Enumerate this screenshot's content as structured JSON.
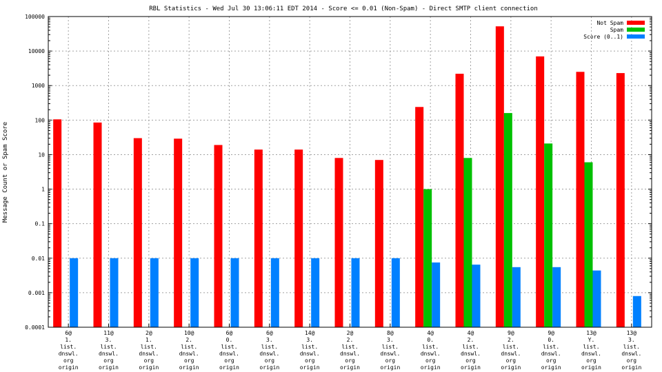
{
  "chart_data": {
    "type": "bar",
    "title": "RBL Statistics - Wed Jul 30 13:06:11 EDT 2014 - Score <= 0.01 (Non-Spam) - Direct SMTP client connection",
    "xlabel": "",
    "ylabel": "Message Count or Spam Score",
    "yscale": "log",
    "ylim": [
      0.0001,
      100000
    ],
    "yticks": [
      "0.0001",
      "0.001",
      "0.01",
      "0.1",
      "1",
      "10",
      "100",
      "1000",
      "10000",
      "100000"
    ],
    "grid": true,
    "legend_position": "top-right",
    "categories": [
      [
        "6@",
        "1.",
        "list.",
        "dnswl.",
        "org",
        "origin"
      ],
      [
        "11@",
        "3.",
        "list.",
        "dnswl.",
        "org",
        "origin"
      ],
      [
        "2@",
        "1.",
        "list.",
        "dnswl.",
        "org",
        "origin"
      ],
      [
        "10@",
        "2.",
        "list.",
        "dnswl.",
        "org",
        "origin"
      ],
      [
        "6@",
        "0.",
        "list.",
        "dnswl.",
        "org",
        "origin"
      ],
      [
        "6@",
        "3.",
        "list.",
        "dnswl.",
        "org",
        "origin"
      ],
      [
        "14@",
        "3.",
        "list.",
        "dnswl.",
        "org",
        "origin"
      ],
      [
        "2@",
        "2.",
        "list.",
        "dnswl.",
        "org",
        "origin"
      ],
      [
        "8@",
        "3.",
        "list.",
        "dnswl.",
        "org",
        "origin"
      ],
      [
        "4@",
        "0.",
        "list.",
        "dnswl.",
        "org",
        "origin"
      ],
      [
        "4@",
        "2.",
        "list.",
        "dnswl.",
        "org",
        "origin"
      ],
      [
        "9@",
        "2.",
        "list.",
        "dnswl.",
        "org",
        "origin"
      ],
      [
        "9@",
        "0.",
        "list.",
        "dnswl.",
        "org",
        "origin"
      ],
      [
        "13@",
        "Y.",
        "list.",
        "dnswl.",
        "org",
        "origin"
      ],
      [
        "13@",
        "3.",
        "list.",
        "dnswl.",
        "org",
        "origin"
      ]
    ],
    "series": [
      {
        "name": "Not Spam",
        "color": "#ff0000",
        "values": [
          105,
          85,
          30,
          29,
          19,
          14,
          14,
          8,
          7,
          240,
          2200,
          52000,
          7000,
          2500,
          2300
        ]
      },
      {
        "name": "Spam",
        "color": "#00c000",
        "values": [
          null,
          null,
          null,
          null,
          null,
          null,
          null,
          null,
          null,
          1,
          8,
          160,
          21,
          6,
          null
        ]
      },
      {
        "name": "Score (0..1)",
        "color": "#0080ff",
        "values": [
          0.01,
          0.01,
          0.01,
          0.01,
          0.01,
          0.01,
          0.01,
          0.01,
          0.01,
          0.0075,
          0.0065,
          0.0055,
          0.0055,
          0.0044,
          0.0008
        ]
      }
    ]
  }
}
